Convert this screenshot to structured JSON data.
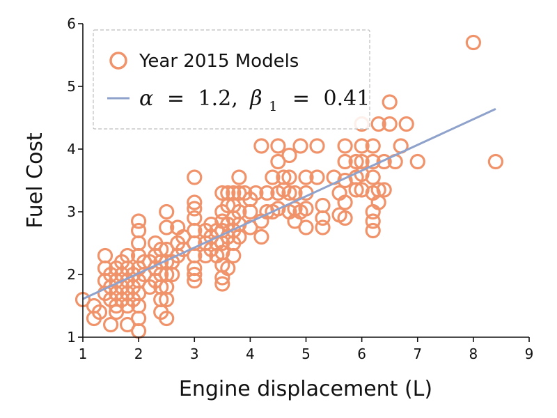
{
  "chart_data": {
    "type": "scatter",
    "xlabel": "Engine displacement (L)",
    "ylabel": "Fuel Cost",
    "xlim": [
      1,
      9
    ],
    "ylim": [
      1,
      6
    ],
    "xticks": [
      "1",
      "2",
      "3",
      "4",
      "5",
      "6",
      "7",
      "8",
      "9"
    ],
    "yticks": [
      "1",
      "2",
      "3",
      "4",
      "5",
      "6"
    ],
    "grid": false,
    "legend_position": "top-left",
    "colors": {
      "points": "#f0936a",
      "fit": "#8ea2cb"
    },
    "series": [
      {
        "name": "Year 2015 Models",
        "kind": "scatter",
        "points": [
          [
            1.0,
            1.6
          ],
          [
            1.2,
            1.3
          ],
          [
            1.2,
            1.5
          ],
          [
            1.3,
            1.4
          ],
          [
            1.4,
            1.7
          ],
          [
            1.4,
            1.9
          ],
          [
            1.4,
            2.1
          ],
          [
            1.4,
            2.3
          ],
          [
            1.5,
            1.2
          ],
          [
            1.5,
            1.6
          ],
          [
            1.5,
            1.8
          ],
          [
            1.5,
            2.0
          ],
          [
            1.6,
            1.5
          ],
          [
            1.6,
            1.7
          ],
          [
            1.6,
            1.9
          ],
          [
            1.6,
            2.1
          ],
          [
            1.6,
            1.4
          ],
          [
            1.7,
            1.6
          ],
          [
            1.7,
            1.8
          ],
          [
            1.7,
            2.0
          ],
          [
            1.7,
            2.2
          ],
          [
            1.8,
            1.2
          ],
          [
            1.8,
            1.5
          ],
          [
            1.8,
            1.7
          ],
          [
            1.8,
            1.9
          ],
          [
            1.8,
            2.1
          ],
          [
            1.8,
            2.3
          ],
          [
            1.9,
            1.6
          ],
          [
            1.9,
            1.8
          ],
          [
            1.9,
            2.0
          ],
          [
            2.0,
            1.1
          ],
          [
            2.0,
            1.3
          ],
          [
            2.0,
            1.5
          ],
          [
            2.0,
            1.7
          ],
          [
            2.0,
            1.9
          ],
          [
            2.0,
            2.1
          ],
          [
            2.0,
            2.3
          ],
          [
            2.0,
            2.5
          ],
          [
            2.0,
            2.7
          ],
          [
            2.0,
            2.85
          ],
          [
            2.1,
            2.0
          ],
          [
            2.1,
            2.2
          ],
          [
            2.2,
            1.8
          ],
          [
            2.2,
            2.2
          ],
          [
            2.3,
            1.9
          ],
          [
            2.3,
            2.1
          ],
          [
            2.3,
            2.3
          ],
          [
            2.3,
            2.5
          ],
          [
            2.4,
            1.4
          ],
          [
            2.4,
            1.6
          ],
          [
            2.4,
            1.8
          ],
          [
            2.4,
            2.0
          ],
          [
            2.4,
            2.2
          ],
          [
            2.4,
            2.4
          ],
          [
            2.5,
            1.3
          ],
          [
            2.5,
            1.6
          ],
          [
            2.5,
            1.8
          ],
          [
            2.5,
            2.0
          ],
          [
            2.5,
            2.2
          ],
          [
            2.5,
            2.4
          ],
          [
            2.5,
            2.75
          ],
          [
            2.5,
            3.0
          ],
          [
            2.6,
            2.0
          ],
          [
            2.6,
            2.2
          ],
          [
            2.7,
            2.3
          ],
          [
            2.7,
            2.5
          ],
          [
            2.7,
            2.75
          ],
          [
            2.8,
            2.4
          ],
          [
            2.8,
            2.6
          ],
          [
            3.0,
            1.9
          ],
          [
            3.0,
            2.0
          ],
          [
            3.0,
            2.1
          ],
          [
            3.0,
            2.3
          ],
          [
            3.0,
            2.5
          ],
          [
            3.0,
            2.7
          ],
          [
            3.0,
            2.9
          ],
          [
            3.0,
            3.05
          ],
          [
            3.0,
            3.15
          ],
          [
            3.0,
            3.55
          ],
          [
            3.2,
            2.3
          ],
          [
            3.2,
            2.5
          ],
          [
            3.2,
            2.7
          ],
          [
            3.3,
            2.4
          ],
          [
            3.3,
            2.6
          ],
          [
            3.3,
            2.8
          ],
          [
            3.4,
            2.3
          ],
          [
            3.4,
            2.5
          ],
          [
            3.4,
            2.7
          ],
          [
            3.5,
            1.85
          ],
          [
            3.5,
            1.95
          ],
          [
            3.5,
            2.15
          ],
          [
            3.5,
            2.35
          ],
          [
            3.5,
            2.5
          ],
          [
            3.5,
            2.7
          ],
          [
            3.5,
            2.85
          ],
          [
            3.5,
            3.0
          ],
          [
            3.5,
            3.3
          ],
          [
            3.6,
            2.1
          ],
          [
            3.6,
            2.6
          ],
          [
            3.6,
            2.8
          ],
          [
            3.6,
            3.1
          ],
          [
            3.6,
            3.3
          ],
          [
            3.7,
            2.3
          ],
          [
            3.7,
            2.5
          ],
          [
            3.7,
            2.7
          ],
          [
            3.7,
            2.9
          ],
          [
            3.7,
            3.1
          ],
          [
            3.7,
            3.3
          ],
          [
            3.8,
            2.6
          ],
          [
            3.8,
            2.8
          ],
          [
            3.8,
            3.0
          ],
          [
            3.8,
            3.3
          ],
          [
            3.8,
            3.55
          ],
          [
            3.9,
            3.3
          ],
          [
            4.0,
            2.75
          ],
          [
            4.0,
            3.0
          ],
          [
            4.0,
            3.2
          ],
          [
            4.1,
            3.3
          ],
          [
            4.2,
            2.6
          ],
          [
            4.2,
            2.85
          ],
          [
            4.2,
            4.05
          ],
          [
            4.3,
            3.0
          ],
          [
            4.3,
            3.3
          ],
          [
            4.4,
            3.0
          ],
          [
            4.4,
            3.55
          ],
          [
            4.5,
            3.05
          ],
          [
            4.5,
            3.3
          ],
          [
            4.5,
            3.8
          ],
          [
            4.5,
            4.05
          ],
          [
            4.6,
            3.35
          ],
          [
            4.6,
            3.55
          ],
          [
            4.7,
            3.0
          ],
          [
            4.7,
            3.3
          ],
          [
            4.7,
            3.55
          ],
          [
            4.7,
            3.9
          ],
          [
            4.8,
            2.85
          ],
          [
            4.8,
            3.05
          ],
          [
            4.8,
            3.3
          ],
          [
            4.9,
            3.0
          ],
          [
            4.9,
            4.05
          ],
          [
            5.0,
            2.75
          ],
          [
            5.0,
            3.05
          ],
          [
            5.0,
            3.3
          ],
          [
            5.0,
            3.55
          ],
          [
            5.2,
            3.55
          ],
          [
            5.2,
            4.05
          ],
          [
            5.3,
            2.75
          ],
          [
            5.3,
            2.9
          ],
          [
            5.3,
            3.1
          ],
          [
            5.5,
            3.55
          ],
          [
            5.6,
            2.95
          ],
          [
            5.6,
            3.3
          ],
          [
            5.7,
            2.9
          ],
          [
            5.7,
            3.15
          ],
          [
            5.7,
            3.5
          ],
          [
            5.7,
            3.8
          ],
          [
            5.7,
            4.05
          ],
          [
            5.9,
            3.35
          ],
          [
            5.9,
            3.55
          ],
          [
            5.9,
            3.8
          ],
          [
            6.0,
            3.35
          ],
          [
            6.0,
            3.6
          ],
          [
            6.0,
            3.8
          ],
          [
            6.0,
            4.05
          ],
          [
            6.0,
            4.4
          ],
          [
            6.2,
            2.7
          ],
          [
            6.2,
            2.85
          ],
          [
            6.2,
            3.0
          ],
          [
            6.2,
            3.3
          ],
          [
            6.2,
            3.55
          ],
          [
            6.2,
            3.8
          ],
          [
            6.2,
            4.05
          ],
          [
            6.3,
            3.15
          ],
          [
            6.3,
            3.35
          ],
          [
            6.3,
            4.4
          ],
          [
            6.4,
            3.35
          ],
          [
            6.4,
            3.8
          ],
          [
            6.5,
            4.4
          ],
          [
            6.5,
            4.75
          ],
          [
            6.6,
            3.8
          ],
          [
            6.7,
            4.05
          ],
          [
            6.8,
            4.4
          ],
          [
            7.0,
            3.8
          ],
          [
            8.0,
            5.7
          ],
          [
            8.4,
            3.8
          ]
        ]
      },
      {
        "name": "α = 1.2, β₁ = 0.41",
        "kind": "line",
        "x": [
          1.0,
          8.4
        ],
        "y": [
          1.61,
          4.64
        ]
      }
    ]
  },
  "legend": {
    "scatter_label": "Year 2015 Models",
    "line_alpha_symbol": "α",
    "line_equals_1": "=",
    "line_alpha_value": "1.2,",
    "line_beta_symbol": "β",
    "line_beta_subscript": "1",
    "line_equals_2": "=",
    "line_beta_value": "0.41"
  }
}
